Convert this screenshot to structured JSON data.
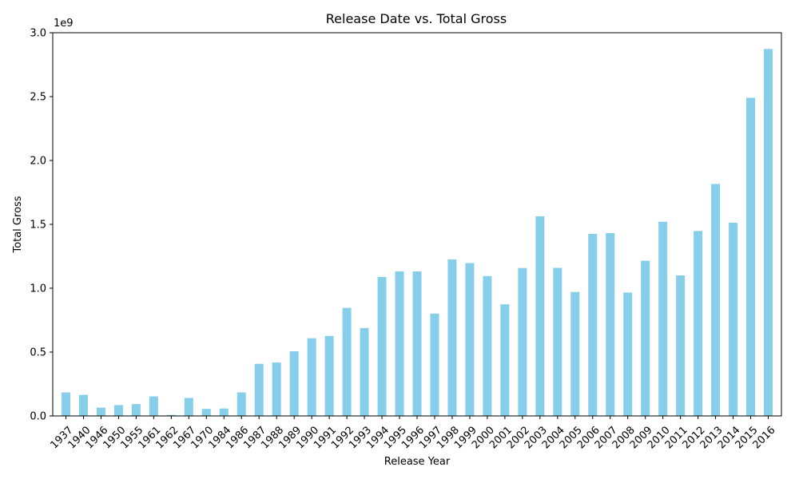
{
  "chart_data": {
    "type": "bar",
    "title": "Release Date vs. Total Gross",
    "xlabel": "Release Year",
    "ylabel": "Total Gross",
    "y_offset_text": "1e9",
    "ylim": [
      0,
      3.0
    ],
    "yticks": [
      "0.0",
      "0.5",
      "1.0",
      "1.5",
      "2.0",
      "2.5",
      "3.0"
    ],
    "bar_color": "#87CEEB",
    "grid": false,
    "legend": "none",
    "categories": [
      "1937",
      "1940",
      "1946",
      "1950",
      "1955",
      "1961",
      "1962",
      "1967",
      "1970",
      "1984",
      "1986",
      "1987",
      "1988",
      "1989",
      "1990",
      "1991",
      "1992",
      "1993",
      "1994",
      "1995",
      "1996",
      "1997",
      "1998",
      "1999",
      "2000",
      "2001",
      "2002",
      "2003",
      "2004",
      "2005",
      "2006",
      "2007",
      "2008",
      "2009",
      "2010",
      "2011",
      "2012",
      "2013",
      "2014",
      "2015",
      "2016"
    ],
    "values": [
      0.184,
      0.165,
      0.065,
      0.085,
      0.093,
      0.153,
      0.008,
      0.141,
      0.055,
      0.058,
      0.184,
      0.408,
      0.418,
      0.506,
      0.608,
      0.626,
      0.846,
      0.688,
      1.088,
      1.131,
      1.131,
      0.801,
      1.225,
      1.197,
      1.095,
      0.874,
      1.158,
      1.563,
      1.159,
      0.971,
      1.425,
      1.431,
      0.966,
      1.215,
      1.52,
      1.1,
      1.448,
      1.816,
      1.513,
      2.491,
      2.873
    ]
  }
}
